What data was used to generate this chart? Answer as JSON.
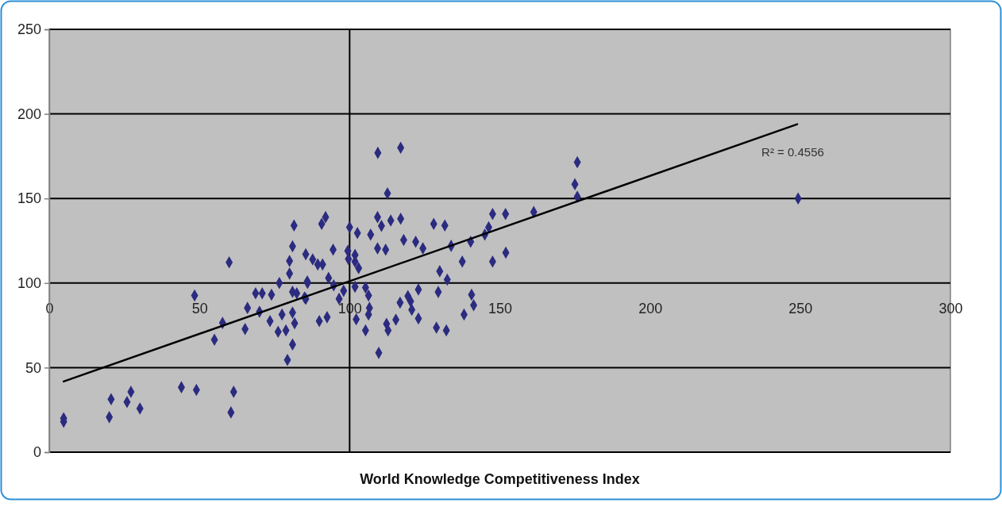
{
  "chart_data": {
    "type": "scatter",
    "xlabel": "World Knowledge Competitiveness Index",
    "xlim": [
      0,
      300
    ],
    "xticks": [
      0,
      50,
      100,
      150,
      200,
      250,
      300
    ],
    "ylim": [
      0,
      250
    ],
    "yticks": [
      0,
      50,
      100,
      150,
      200,
      250
    ],
    "grid": "y",
    "ref_lines": [
      {
        "axis": "x",
        "value": 100,
        "color": "#000000"
      }
    ],
    "annotations": [
      "R² = 0.4556"
    ],
    "series": [
      {
        "color": "#2b2b80",
        "marker": "diamond",
        "x": [
          4.8,
          4.8,
          20.6,
          20,
          27.2,
          25.9,
          30.2,
          44,
          49,
          61.4,
          60.5,
          48.4,
          59.9,
          55,
          57.7,
          65.2,
          66,
          68.7,
          70.9,
          74,
          70,
          73.5,
          76.2,
          78.8,
          77.5,
          81,
          81,
          79.3,
          81.7,
          76.6,
          80,
          80,
          81,
          81.5,
          81,
          82.4,
          85.9,
          85.4,
          85,
          86,
          85.4,
          87.7,
          89.4,
          91,
          93,
          94.7,
          98,
          89.9,
          92.5,
          96.5,
          94.5,
          99.4,
          99.6,
          101.8,
          101.8,
          103,
          100,
          102.6,
          92,
          90.7,
          107,
          109.3,
          110.6,
          113.7,
          117,
          109.4,
          117,
          112.6,
          118,
          122,
          124.4,
          128,
          131.7,
          133.8,
          137.5,
          140.3,
          145,
          146.3,
          147.6,
          151.9,
          161.3,
          147.6,
          152,
          109.3,
          112,
          130,
          132.5,
          101.8,
          105.3,
          106.3,
          106.6,
          106.3,
          102.2,
          105.3,
          112.3,
          112.8,
          109.7,
          116.8,
          119.4,
          120.3,
          120.7,
          122.9,
          122.9,
          115.4,
          129.5,
          128.9,
          132.2,
          140.6,
          141.3,
          138.1,
          175.8,
          175,
          175.8,
          249.3
        ],
        "values": [
          18,
          20,
          31.3,
          20.7,
          35.7,
          29.7,
          25.8,
          38.4,
          36.8,
          35.7,
          23.5,
          92.6,
          112.2,
          66.5,
          76.4,
          72.8,
          85.3,
          93.9,
          93.9,
          93.1,
          83,
          77.5,
          71.2,
          72,
          81.4,
          82.5,
          63.7,
          54.5,
          76.2,
          100,
          105.6,
          113,
          121.7,
          134,
          94.8,
          93.9,
          101,
          90.7,
          91.5,
          100,
          117,
          114,
          111,
          111,
          103,
          98.6,
          95.4,
          77.5,
          79.8,
          90.7,
          119.7,
          119,
          114.2,
          116.6,
          112.7,
          108.8,
          133,
          129.6,
          139,
          135,
          128.6,
          139,
          133.8,
          137,
          138,
          177,
          180,
          153,
          125.5,
          124.4,
          120.5,
          135,
          134,
          122,
          112.7,
          124.4,
          128.6,
          133,
          140.8,
          140.8,
          142,
          112.7,
          118,
          120.5,
          119.7,
          107,
          102,
          97.8,
          97.3,
          92.6,
          85.3,
          81.4,
          78.6,
          72,
          75.9,
          72,
          58.7,
          88.4,
          92.3,
          89.2,
          84.2,
          96.2,
          79,
          78.3,
          94.7,
          73.6,
          72,
          93.1,
          86.9,
          81.4,
          171.4,
          158.4,
          151,
          150
        ]
      },
      {
        "type": "line",
        "color": "#000000",
        "marker": "none",
        "x": [
          4.8,
          249
        ],
        "values": [
          41.8,
          193.9
        ]
      }
    ]
  }
}
